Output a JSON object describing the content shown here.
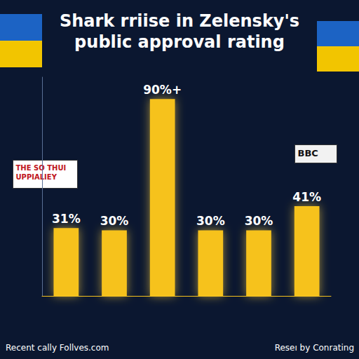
{
  "chart_data": {
    "type": "bar",
    "title": "Shark rriise in Zelensky's\npublic approval rating",
    "categories": [
      null,
      null,
      null,
      null,
      null,
      null
    ],
    "values": [
      31,
      30,
      90,
      30,
      30,
      41
    ],
    "value_labels": [
      "31%",
      "30%",
      "90%+",
      "30%",
      "30%",
      "41%"
    ],
    "color": "#f6c21c",
    "ylim": [
      0,
      100
    ],
    "yticks": [
      0,
      100
    ],
    "grid": false,
    "data_labels": true,
    "tick_labels": false,
    "annotations": [
      "THE SO THUI UPPIALIEY",
      "BBC",
      "Recent cally Follves.com",
      "Reseı by Conrating"
    ]
  }
}
